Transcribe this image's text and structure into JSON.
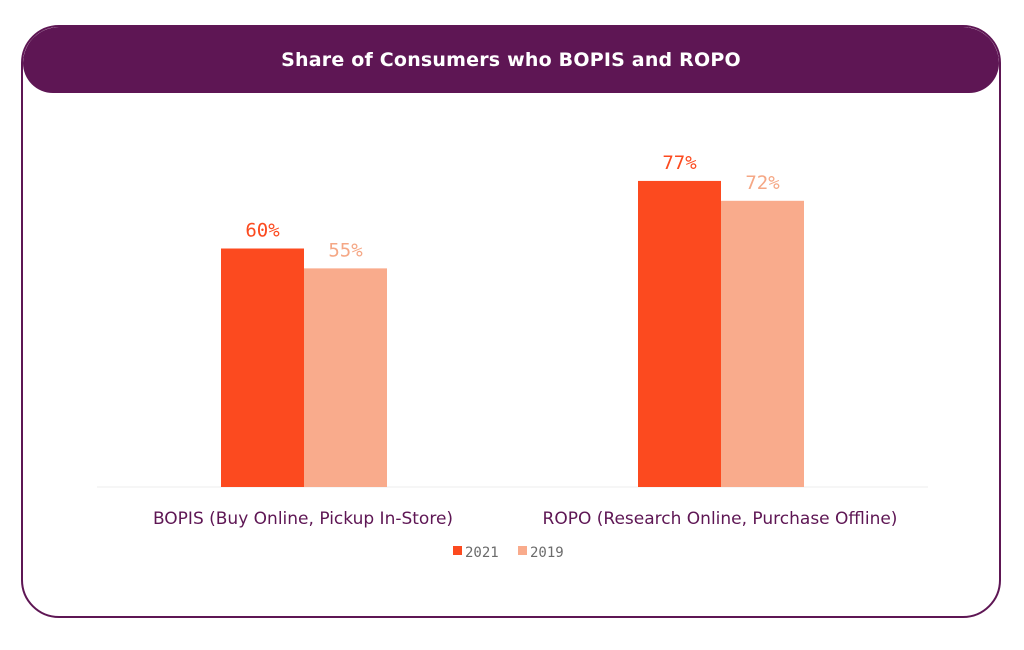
{
  "chart_data": {
    "type": "bar",
    "title": "Share of Consumers who BOPIS and ROPO",
    "categories": [
      "BOPIS (Buy Online, Pickup In-Store)",
      "ROPO (Research Online, Purchase Offline)"
    ],
    "series": [
      {
        "name": "2021",
        "values": [
          60,
          77
        ],
        "labels": [
          "60%",
          "77%"
        ],
        "color": "#fc4a1f"
      },
      {
        "name": "2019",
        "values": [
          55,
          72
        ],
        "labels": [
          "55%",
          "72%"
        ],
        "color": "#f9ab8c"
      }
    ],
    "ylim": [
      0,
      100
    ],
    "legend_position": "bottom-center",
    "grid": false,
    "colors": {
      "frame": "#5e1654",
      "label_2021": "#fc4a1f",
      "label_2019": "#f5a785"
    }
  }
}
